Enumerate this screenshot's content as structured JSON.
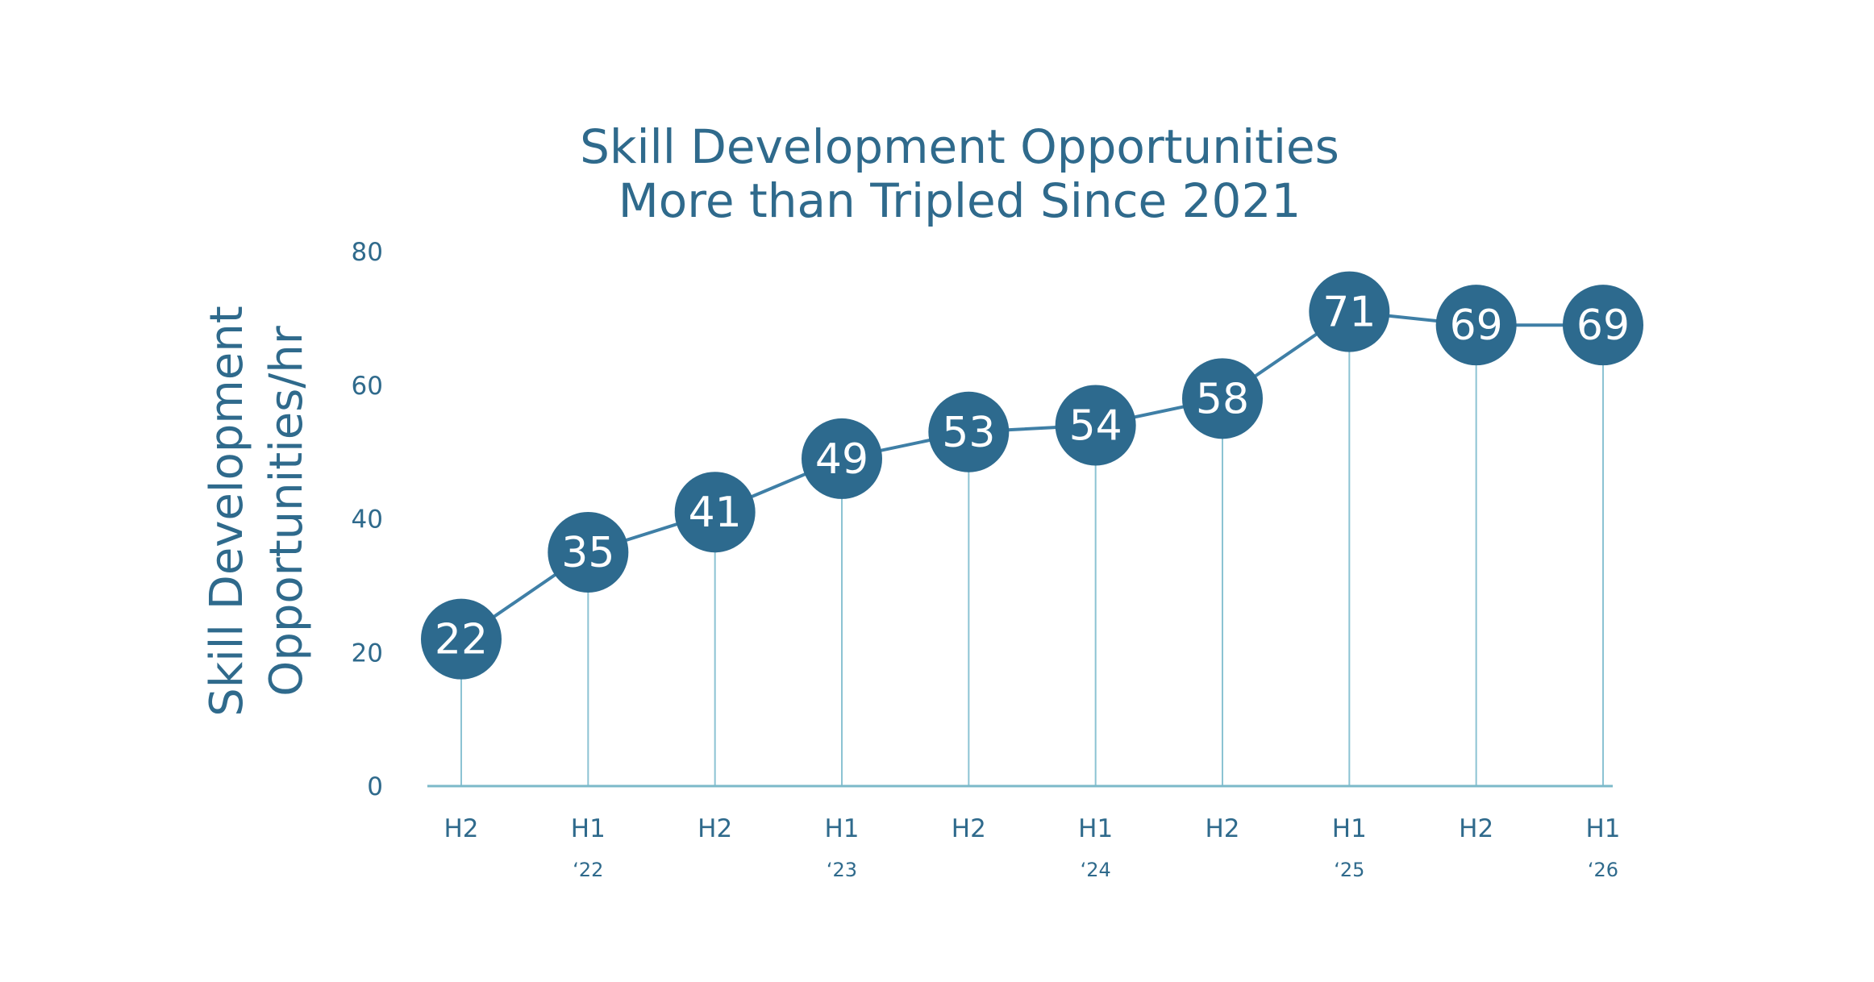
{
  "chart_data": {
    "type": "line",
    "title": [
      "Skill Development Opportunities",
      "More than Tripled Since 2021"
    ],
    "ylabel": [
      "Skill Development",
      "Opportunities/hr"
    ],
    "xlabel": "",
    "ylim": [
      0,
      80
    ],
    "yticks": [
      0,
      20,
      40,
      60,
      80
    ],
    "categories": [
      "H2",
      "H1",
      "H2",
      "H1",
      "H2",
      "H1",
      "H2",
      "H1",
      "H2",
      "H1"
    ],
    "year_labels": [
      "",
      "‘22",
      "",
      "‘23",
      "",
      "‘24",
      "",
      "‘25",
      "",
      "‘26"
    ],
    "values": [
      22,
      35,
      41,
      49,
      53,
      54,
      58,
      71,
      69,
      69
    ],
    "data_labels": [
      "22",
      "35",
      "41",
      "49",
      "53",
      "54",
      "58",
      "71",
      "69",
      "69"
    ],
    "grid": false,
    "drop_lines": true,
    "colors": {
      "marker": "#2d6a8e",
      "line": "#3f7fa6",
      "drop_line": "#8cc3d3",
      "axis": "#7cb9c9",
      "text": "#2f6a8c",
      "label_text": "#ffffff"
    }
  }
}
